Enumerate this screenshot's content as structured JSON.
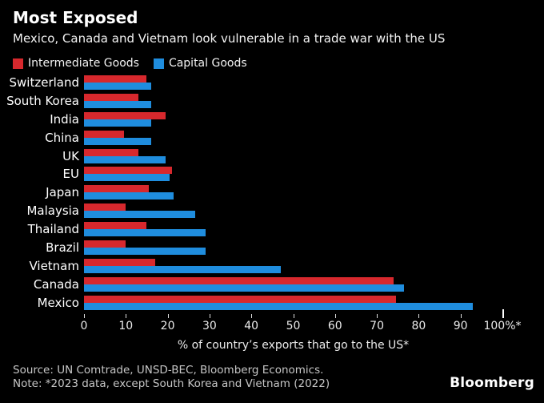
{
  "header": {
    "title": "Most Exposed",
    "subtitle": "Mexico, Canada and Vietnam look vulnerable in a trade war with the US"
  },
  "legend": [
    {
      "label": "Intermediate Goods",
      "color": "#d7282d"
    },
    {
      "label": "Capital Goods",
      "color": "#1f8dde"
    }
  ],
  "chart_data": {
    "type": "bar",
    "orientation": "horizontal",
    "title": "Most Exposed",
    "subtitle": "Mexico, Canada and Vietnam look vulnerable in a trade war with the US",
    "categories": [
      "Switzerland",
      "South Korea",
      "India",
      "China",
      "UK",
      "EU",
      "Japan",
      "Malaysia",
      "Thailand",
      "Brazil",
      "Vietnam",
      "Canada",
      "Mexico"
    ],
    "series": [
      {
        "name": "Intermediate Goods",
        "color": "#d7282d",
        "values": [
          15,
          13,
          19.5,
          9.5,
          13,
          21,
          15.5,
          10,
          15,
          10,
          17,
          74,
          74.5
        ]
      },
      {
        "name": "Capital Goods",
        "color": "#1f8dde",
        "values": [
          16,
          16,
          16,
          16,
          19.5,
          20.5,
          21.5,
          26.5,
          29,
          29,
          47,
          76.5,
          93
        ]
      }
    ],
    "xlabel": "% of country’s exports that go to the US*",
    "xlim": [
      0,
      100
    ],
    "xticks": [
      0,
      10,
      20,
      30,
      40,
      50,
      60,
      70,
      80,
      90,
      100
    ],
    "xtick_labels": [
      "0",
      "10",
      "20",
      "30",
      "40",
      "50",
      "60",
      "70",
      "80",
      "90",
      "100%*"
    ],
    "grid": false,
    "legend_position": "top-left",
    "background": "#000000"
  },
  "footer": {
    "source": "Source: UN Comtrade, UNSD-BEC, Bloomberg Economics.",
    "note": "Note: *2023 data, except South Korea and Vietnam (2022)",
    "logo": "Bloomberg"
  }
}
